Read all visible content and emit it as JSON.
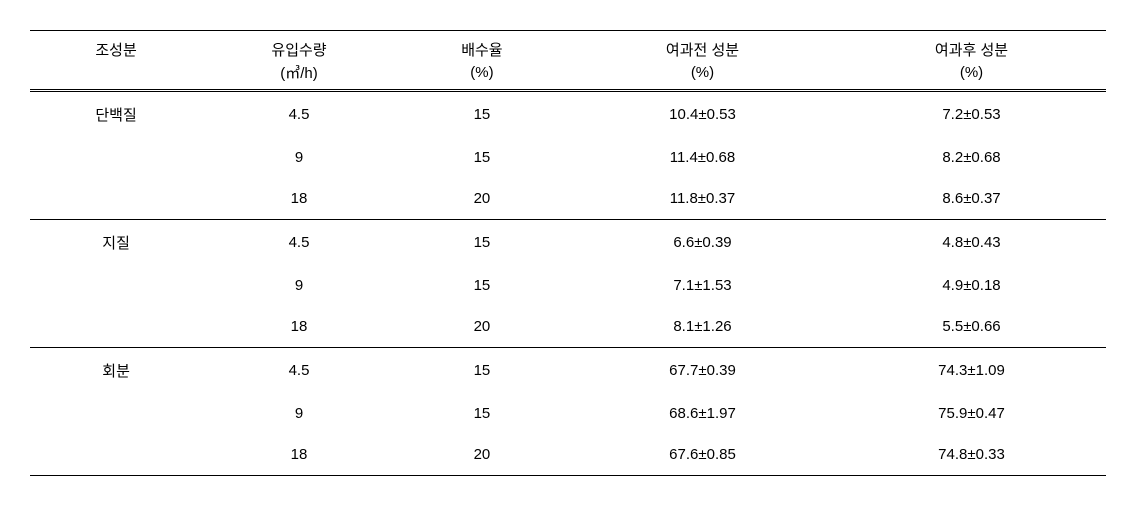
{
  "table": {
    "headers": {
      "col1": {
        "line1": "조성분",
        "line2": ""
      },
      "col2": {
        "line1": "유입수량",
        "line2": "(㎥/h)"
      },
      "col3": {
        "line1": "배수율",
        "line2": "(%)"
      },
      "col4": {
        "line1": "여과전 성분",
        "line2": "(%)"
      },
      "col5": {
        "line1": "여과후 성분",
        "line2": "(%)"
      }
    },
    "groups": [
      {
        "label": "단백질",
        "rows": [
          {
            "inflow": "4.5",
            "drain": "15",
            "before": "10.4±0.53",
            "after": "7.2±0.53"
          },
          {
            "inflow": "9",
            "drain": "15",
            "before": "11.4±0.68",
            "after": "8.2±0.68"
          },
          {
            "inflow": "18",
            "drain": "20",
            "before": "11.8±0.37",
            "after": "8.6±0.37"
          }
        ]
      },
      {
        "label": "지질",
        "rows": [
          {
            "inflow": "4.5",
            "drain": "15",
            "before": "6.6±0.39",
            "after": "4.8±0.43"
          },
          {
            "inflow": "9",
            "drain": "15",
            "before": "7.1±1.53",
            "after": "4.9±0.18"
          },
          {
            "inflow": "18",
            "drain": "20",
            "before": "8.1±1.26",
            "after": "5.5±0.66"
          }
        ]
      },
      {
        "label": "회분",
        "rows": [
          {
            "inflow": "4.5",
            "drain": "15",
            "before": "67.7±0.39",
            "after": "74.3±1.09"
          },
          {
            "inflow": "9",
            "drain": "15",
            "before": "68.6±1.97",
            "after": "75.9±0.47"
          },
          {
            "inflow": "18",
            "drain": "20",
            "before": "67.6±0.85",
            "after": "74.8±0.33"
          }
        ]
      }
    ]
  }
}
